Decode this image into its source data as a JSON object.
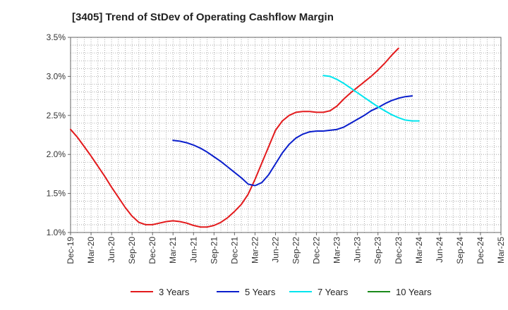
{
  "chart_data": {
    "type": "line",
    "title": "[3405]  Trend of StDev of Operating Cashflow Margin",
    "xlabel": "",
    "ylabel": "",
    "x_ticks": [
      "Dec-19",
      "Mar-20",
      "Jun-20",
      "Sep-20",
      "Dec-20",
      "Mar-21",
      "Jun-21",
      "Sep-21",
      "Dec-21",
      "Mar-22",
      "Jun-22",
      "Sep-22",
      "Dec-22",
      "Mar-23",
      "Jun-23",
      "Sep-23",
      "Dec-23",
      "Mar-24",
      "Jun-24",
      "Sep-24",
      "Dec-24",
      "Mar-25"
    ],
    "y_ticks": [
      "1.0%",
      "1.5%",
      "2.0%",
      "2.5%",
      "3.0%",
      "3.5%"
    ],
    "ylim": [
      1.0,
      3.5
    ],
    "grid": true,
    "legend_position": "bottom",
    "series": [
      {
        "name": "3 Years",
        "color": "#e31a1c",
        "start_index": 0,
        "values": [
          2.32,
          2.22,
          2.1,
          1.98,
          1.85,
          1.72,
          1.58,
          1.45,
          1.32,
          1.21,
          1.13,
          1.1,
          1.1,
          1.12,
          1.14,
          1.15,
          1.14,
          1.12,
          1.09,
          1.07,
          1.07,
          1.09,
          1.13,
          1.19,
          1.27,
          1.36,
          1.49,
          1.68,
          1.89,
          2.1,
          2.31,
          2.43,
          2.5,
          2.54,
          2.55,
          2.55,
          2.54,
          2.54,
          2.56,
          2.62,
          2.71,
          2.79,
          2.86,
          2.93,
          3.0,
          3.08,
          3.17,
          3.27,
          3.36
        ]
      },
      {
        "name": "5 Years",
        "color": "#0a1ecc",
        "start_index": 15,
        "values": [
          2.18,
          2.17,
          2.15,
          2.12,
          2.08,
          2.03,
          1.97,
          1.91,
          1.84,
          1.77,
          1.7,
          1.62,
          1.6,
          1.64,
          1.74,
          1.88,
          2.02,
          2.13,
          2.21,
          2.26,
          2.29,
          2.3,
          2.3,
          2.31,
          2.32,
          2.35,
          2.4,
          2.45,
          2.5,
          2.56,
          2.6,
          2.65,
          2.69,
          2.72,
          2.74,
          2.75
        ]
      },
      {
        "name": "7 Years",
        "color": "#00e5ee",
        "start_index": 37,
        "values": [
          3.01,
          3.0,
          2.96,
          2.91,
          2.85,
          2.79,
          2.73,
          2.67,
          2.61,
          2.56,
          2.51,
          2.47,
          2.44,
          2.43,
          2.43
        ]
      },
      {
        "name": "10 Years",
        "color": "#1a8a1a",
        "start_index": 0,
        "values": []
      }
    ]
  }
}
